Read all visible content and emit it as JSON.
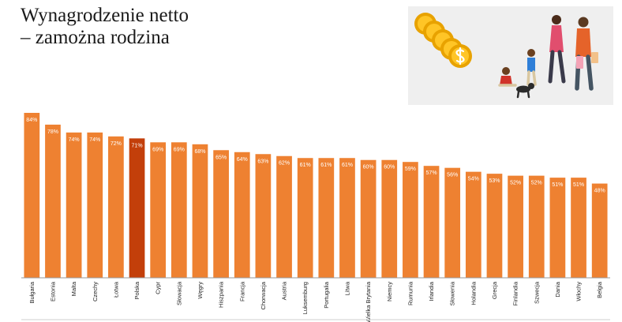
{
  "title": {
    "line1": "Wynagrodzenie netto",
    "line2": "– zamożna rodzina"
  },
  "illustration": {
    "icons": [
      "coins-stack-icon",
      "dollar-coin-icon",
      "family-icon",
      "dog-icon",
      "shopping-bag-icon"
    ]
  },
  "colors": {
    "bar": "#ee8131",
    "highlight": "#c33f0a",
    "data_label": "#ffffff"
  },
  "chart_data": {
    "type": "bar",
    "title": "",
    "xlabel": "",
    "ylabel": "",
    "ylim": [
      0,
      84
    ],
    "highlight_category": "Polska",
    "categories": [
      "Bułgaria",
      "Estonia",
      "Malta",
      "Czechy",
      "Łotwa",
      "Polska",
      "Cypr",
      "Słowacja",
      "Węgry",
      "Hiszpania",
      "Francja",
      "Chorwacja",
      "Austria",
      "Luksemburg",
      "Portugalia",
      "Litwa",
      "Wielka Brytania",
      "Niemcy",
      "Rumunia",
      "Irlandia",
      "Słowenia",
      "Holandia",
      "Grecja",
      "Finlandia",
      "Szwecja",
      "Dania",
      "Włochy",
      "Belgia"
    ],
    "values": [
      84,
      78,
      74,
      74,
      72,
      71,
      69,
      69,
      68,
      65,
      64,
      63,
      62,
      61,
      61,
      61,
      60,
      60,
      59,
      57,
      56,
      54,
      53,
      52,
      52,
      51,
      51,
      48
    ],
    "data_labels": [
      "84%",
      "78%",
      "74%",
      "74%",
      "72%",
      "71%",
      "69%",
      "69%",
      "68%",
      "65%",
      "64%",
      "63%",
      "62%",
      "61%",
      "61%",
      "61%",
      "60%",
      "60%",
      "59%",
      "57%",
      "56%",
      "54%",
      "53%",
      "52%",
      "52%",
      "51%",
      "51%",
      "48%"
    ],
    "grid": false
  }
}
